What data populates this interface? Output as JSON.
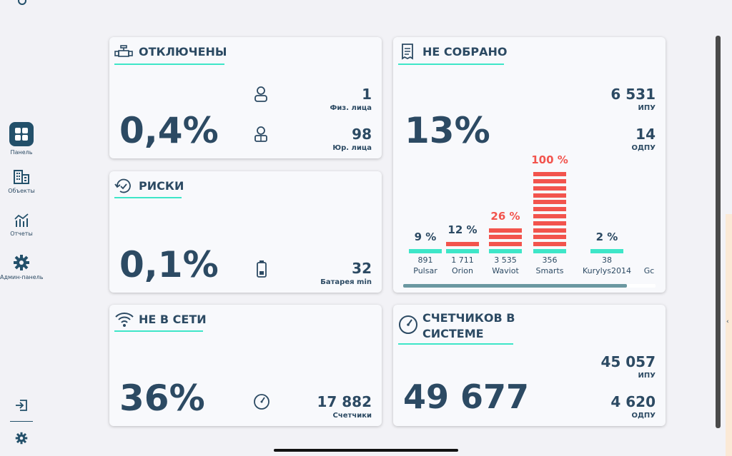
{
  "sidebar": {
    "items": [
      {
        "label": "Панель",
        "icon": "grid-icon"
      },
      {
        "label": "Объекты",
        "icon": "building-icon"
      },
      {
        "label": "Отчеты",
        "icon": "chart-icon"
      },
      {
        "label": "Админ-панель",
        "icon": "gear-icon"
      }
    ],
    "bottom": [
      {
        "icon": "logout-icon"
      },
      {
        "icon": "settings-icon"
      }
    ]
  },
  "cards": {
    "disconnected": {
      "title": "ОТКЛЮЧЕНЫ",
      "value": "0,4%",
      "rows": [
        {
          "num": "1",
          "label": "Физ. лица",
          "icon": "person-icon"
        },
        {
          "num": "98",
          "label": "Юр. лица",
          "icon": "business-person-icon"
        }
      ]
    },
    "risks": {
      "title": "РИСКИ",
      "value": "0,1%",
      "rows": [
        {
          "num": "32",
          "label": "Батарея min",
          "icon": "battery-icon"
        }
      ]
    },
    "offline": {
      "title": "НЕ В СЕТИ",
      "value": "36%",
      "rows": [
        {
          "num": "17 882",
          "label": "Счетчики",
          "icon": "gauge-icon"
        }
      ]
    },
    "not_collected": {
      "title": "НЕ СОБРАНО",
      "value": "13%",
      "rows": [
        {
          "num": "6 531",
          "label": "ИПУ"
        },
        {
          "num": "14",
          "label": "ОДПУ"
        }
      ],
      "bars": [
        {
          "pct_label": "9 %",
          "count": "891",
          "name": "Pulsar",
          "pct": 9,
          "alert": false
        },
        {
          "pct_label": "12 %",
          "count": "1 711",
          "name": "Orion",
          "pct": 12,
          "alert": false
        },
        {
          "pct_label": "26 %",
          "count": "3 535",
          "name": "Waviot",
          "pct": 26,
          "alert": true
        },
        {
          "pct_label": "100 %",
          "count": "356",
          "name": "Smarts",
          "pct": 100,
          "alert": true
        },
        {
          "pct_label": "2 %",
          "count": "38",
          "name": "Kurylys2014",
          "pct": 2,
          "alert": false
        }
      ],
      "partial_name": "Gc"
    },
    "meters": {
      "title_line1": "СЧЕТЧИКОВ В",
      "title_line2": "СИСТЕМЕ",
      "value": "49 677",
      "rows": [
        {
          "num": "45 057",
          "label": "ИПУ"
        },
        {
          "num": "4 620",
          "label": "ОДПУ"
        }
      ]
    }
  },
  "colors": {
    "accent": "#3ee6c8",
    "alert": "#f2544d",
    "text": "#2c4a63",
    "nav_active": "#23506a"
  }
}
